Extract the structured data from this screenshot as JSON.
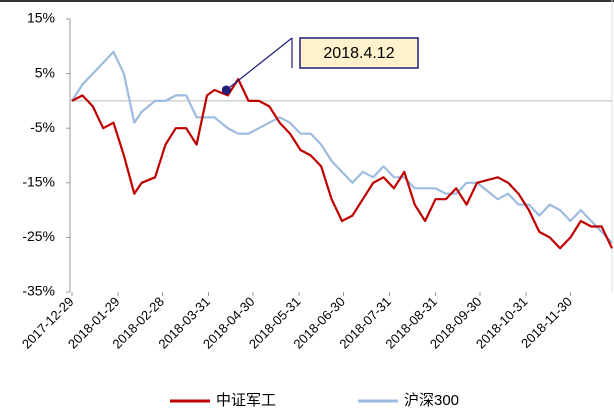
{
  "chart_data": {
    "type": "line",
    "x": [
      "2017-12-29",
      "2018-01-05",
      "2018-01-12",
      "2018-01-19",
      "2018-01-26",
      "2018-02-02",
      "2018-02-09",
      "2018-02-14",
      "2018-02-23",
      "2018-03-02",
      "2018-03-09",
      "2018-03-16",
      "2018-03-23",
      "2018-03-30",
      "2018-04-04",
      "2018-04-13",
      "2018-04-20",
      "2018-04-27",
      "2018-05-04",
      "2018-05-11",
      "2018-05-18",
      "2018-05-25",
      "2018-06-01",
      "2018-06-08",
      "2018-06-15",
      "2018-06-22",
      "2018-06-29",
      "2018-07-06",
      "2018-07-13",
      "2018-07-20",
      "2018-07-27",
      "2018-08-03",
      "2018-08-10",
      "2018-08-17",
      "2018-08-24",
      "2018-08-31",
      "2018-09-07",
      "2018-09-14",
      "2018-09-21",
      "2018-09-28",
      "2018-10-12",
      "2018-10-19",
      "2018-10-26",
      "2018-11-02",
      "2018-11-09",
      "2018-11-16",
      "2018-11-23",
      "2018-11-30",
      "2018-12-07",
      "2018-12-14",
      "2018-12-21",
      "2018-12-28"
    ],
    "series": [
      {
        "name": "中证军工",
        "color": "#c00000",
        "values": [
          0,
          1,
          -1,
          -5,
          -4,
          -10,
          -17,
          -15,
          -14,
          -8,
          -5,
          -5,
          -8,
          1,
          2,
          1,
          4,
          0,
          0,
          -1,
          -4,
          -6,
          -9,
          -10,
          -12,
          -18,
          -22,
          -21,
          -18,
          -15,
          -14,
          -16,
          -13,
          -19,
          -22,
          -18,
          -18,
          -16,
          -19,
          -15,
          -14,
          -15,
          -17,
          -20,
          -24,
          -25,
          -27,
          -25,
          -22,
          -23,
          -23,
          -27
        ]
      },
      {
        "name": "沪深300",
        "color": "#9dbbe0",
        "values": [
          0,
          3,
          5,
          7,
          9,
          5,
          -4,
          -2,
          0,
          0,
          1,
          1,
          -3,
          -3,
          -3,
          -5,
          -6,
          -6,
          -5,
          -4,
          -3,
          -4,
          -6,
          -6,
          -8,
          -11,
          -13,
          -15,
          -13,
          -14,
          -12,
          -14,
          -14,
          -16,
          -16,
          -16,
          -17,
          -17,
          -15,
          -15,
          -18,
          -17,
          -19,
          -19,
          -21,
          -19,
          -20,
          -22,
          -20,
          -22,
          -24,
          -26
        ]
      }
    ],
    "xlim": [
      "2017-12-29",
      "2018-12-28"
    ],
    "xticks": [
      "2017-12-29",
      "2018-01-29",
      "2018-02-28",
      "2018-03-31",
      "2018-04-30",
      "2018-05-31",
      "2018-06-30",
      "2018-07-31",
      "2018-08-31",
      "2018-09-30",
      "2018-10-31",
      "2018-11-30"
    ],
    "ylim": [
      -35,
      15
    ],
    "yticks": [
      {
        "value": 15,
        "label": "15%"
      },
      {
        "value": 5,
        "label": "5%"
      },
      {
        "value": -5,
        "label": "-5%"
      },
      {
        "value": -15,
        "label": "-15%"
      },
      {
        "value": -25,
        "label": "-25%"
      },
      {
        "value": -35,
        "label": "-35%"
      }
    ],
    "annotation": {
      "text": "2018.4.12",
      "x": "2018-04-12",
      "y": 2
    }
  }
}
